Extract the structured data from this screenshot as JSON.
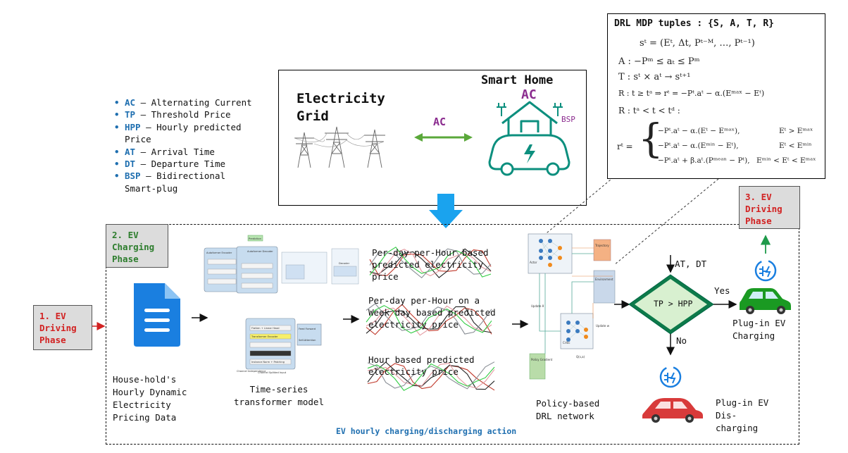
{
  "legend": [
    {
      "abbr": "AC",
      "desc": "Alternating Current"
    },
    {
      "abbr": "TP",
      "desc": "Threshold Price"
    },
    {
      "abbr": "HPP",
      "desc": "Hourly predicted Price"
    },
    {
      "abbr": "AT",
      "desc": "Arrival Time"
    },
    {
      "abbr": "DT",
      "desc": "Departure Time"
    },
    {
      "abbr": "BSP",
      "desc": "Bidirectional Smart-plug"
    }
  ],
  "legend_sep": " – ",
  "phases": {
    "driving1": "1. EV Driving Phase",
    "charging2": "2. EV Charging Phase",
    "driving3": "3. EV Driving Phase"
  },
  "smart_home": {
    "grid_label": "Electricity Grid",
    "home_label": "Smart Home",
    "ac_link": "AC",
    "ac_home": "AC",
    "bsp": "BSP"
  },
  "mdp": {
    "title": "DRL MDP tuples : {S, A, T, R}",
    "s": "sᵗ = (Eᵗ, Δt, Pᵗ⁻ᴹ, …, Pᵗ⁻¹)",
    "a": "A : −Pᵐ ≤ aₜ ≤ Pᵐ",
    "t": "T : sᵗ × aᵗ → sᵗ⁺¹",
    "r1": "R : t ≥ tᵃ ⇒ rᵗ = −Pᵗ.aᵗ − α.(Eᵐᵃˣ − Eᵗ)",
    "r2": "R :  tᵃ < t < tᵈ :",
    "rt": "rᵗ =",
    "case1": "−Pᵗ.aᵗ − α.(Eᵗ − Eᵐᵃˣ),",
    "case1c": "Eᵗ > Eᵐᵃˣ",
    "case2": "−Pᵗ.aᵗ − α.(Eᵐⁱⁿ − Eᵗ),",
    "case2c": "Eᵗ < Eᵐⁱⁿ",
    "case3": "−Pᵗ.aᵗ + β.aᵗ.(Pᵐᵉᵃⁿ − Pᵗ),",
    "case3c": "Eᵐⁱⁿ < Eᵗ < Eᵐᵃˣ"
  },
  "pipeline": {
    "data_label": "House-hold's Hourly Dynamic Electricity Pricing Data",
    "transformer_label": "Time-series transformer model",
    "pred1": "Per-day per-Hour based predicted electricity price",
    "pred2": "Per-day per-Hour on a Week day based predicted electricity price",
    "pred3": "Hour based predicted electricity price",
    "drl_label": "Policy-based DRL network",
    "footer": "EV hourly charging/discharging action"
  },
  "transformer_mini": {
    "prediction": "Prediction",
    "autoformer_encoder": "Autoformer Encoder",
    "autoformer_decoder": "Autoformer Decoder",
    "decoder": "Decoder",
    "flatten": "Flatten + Linear Head",
    "transformer_encoder": "Transformer Encoder",
    "instance_norm": "Instance Norm + Patching",
    "feed_forward": "Feed Forward",
    "self_attention": "Self-Attention",
    "channel_indep": "Channel Independence",
    "channel_split": "Channel Splitted Input"
  },
  "drl_mini": {
    "actor": "Actor",
    "critic": "Critic",
    "environment": "Environment",
    "trajectory": "Trajectory",
    "policy_gradient": "Policy Gradient",
    "update_theta": "Update θ",
    "update_w": "Update w",
    "q_sa": "Q(s,a)"
  },
  "decision": {
    "inputs": "AT, DT",
    "condition": "TP > HPP",
    "yes": "Yes",
    "no": "No",
    "charge": "Plug-in EV Charging",
    "discharge": "Plug-in EV Dis-charging"
  },
  "colors": {
    "blue": "#1f6fb0",
    "purple": "#8b2c8f",
    "green_arrow": "#5aa83a",
    "teal": "#0c8f7e",
    "red_text": "#d22222",
    "green_text": "#2d7d2d",
    "down_arrow": "#1aa3ee",
    "car_green": "#1a9a22",
    "car_red": "#d83a3a",
    "diamond": "#0d7a4a"
  },
  "chart_series_note": "illustrative"
}
